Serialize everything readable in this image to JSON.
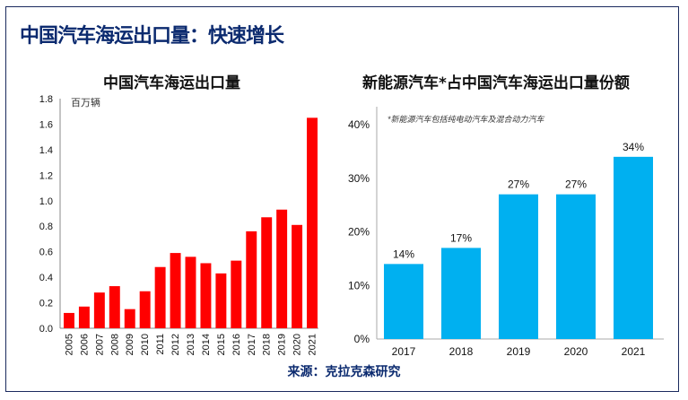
{
  "title": "中国汽车海运出口量：快速增长",
  "source": "来源：克拉克森研究",
  "chart_data": [
    {
      "type": "bar",
      "title": "中国汽车海运出口量",
      "ylabel": "百万辆",
      "categories": [
        "2005",
        "2006",
        "2007",
        "2008",
        "2009",
        "2010",
        "2011",
        "2012",
        "2013",
        "2014",
        "2015",
        "2016",
        "2017",
        "2018",
        "2019",
        "2020",
        "2021"
      ],
      "values": [
        0.12,
        0.17,
        0.28,
        0.33,
        0.15,
        0.29,
        0.48,
        0.59,
        0.56,
        0.51,
        0.43,
        0.53,
        0.76,
        0.87,
        0.93,
        0.81,
        1.65
      ],
      "ylim": [
        0,
        1.8
      ],
      "yticks": [
        "0.0",
        "0.2",
        "0.4",
        "0.6",
        "0.8",
        "1.0",
        "1.2",
        "1.4",
        "1.6",
        "1.8"
      ],
      "color": "#ff0000",
      "grid": false
    },
    {
      "type": "bar",
      "title": "新能源汽车*占中国汽车海运出口量份额",
      "annotation": "*新能源汽车包括纯电动汽车及混合动力汽车",
      "categories": [
        "2017",
        "2018",
        "2019",
        "2020",
        "2021"
      ],
      "values": [
        14,
        17,
        27,
        27,
        34
      ],
      "data_labels": [
        "14%",
        "17%",
        "27%",
        "27%",
        "34%"
      ],
      "ylim": [
        0,
        40
      ],
      "yticks": [
        "0%",
        "10%",
        "20%",
        "30%",
        "40%"
      ],
      "color": "#00b0f0",
      "grid": false
    }
  ]
}
